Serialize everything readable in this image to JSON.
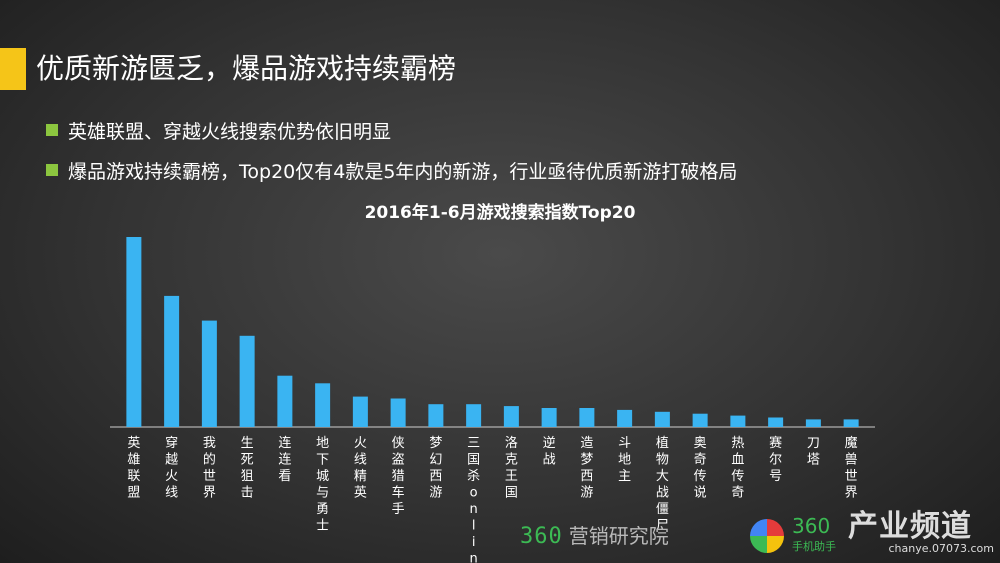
{
  "colors": {
    "accent": "#f5c518",
    "bullet": "#8cc63f",
    "bar": "#3ab4f2",
    "brand_green": "#3cba54"
  },
  "header": {
    "title": "优质新游匮乏，爆品游戏持续霸榜"
  },
  "bullets": [
    {
      "text": "英雄联盟、穿越火线搜索优势依旧明显"
    },
    {
      "text": "爆品游戏持续霸榜，Top20仅有4款是5年内的新游，行业亟待优质新游打破格局"
    }
  ],
  "chart_data": {
    "type": "bar",
    "title": "2016年1-6月游戏搜索指数Top20",
    "categories": [
      "英雄联盟",
      "穿越火线",
      "我的世界",
      "生死狙击",
      "连连看",
      "地下城与勇士",
      "火线精英",
      "侠盗猎车手",
      "梦幻西游",
      "三国杀online",
      "洛克王国",
      "逆战",
      "造梦西游",
      "斗地主",
      "植物大战僵尸",
      "奥奇传说",
      "热血传奇",
      "赛尔号",
      "刀塔",
      "魔兽世界"
    ],
    "values": [
      100,
      69,
      56,
      48,
      27,
      23,
      16,
      15,
      12,
      12,
      11,
      10,
      10,
      9,
      8,
      7,
      6,
      5,
      4,
      4
    ],
    "ylim": [
      0,
      100
    ],
    "xlabel": "",
    "ylabel": "",
    "grid": false,
    "legend": "none"
  },
  "footer": {
    "logo_360": "360",
    "logo_text": "营销研究院",
    "mobile_logo": "360",
    "mobile_logo_sub": "手机助手",
    "watermark_title": "产业频道",
    "watermark_url": "chanye.07073.com"
  }
}
